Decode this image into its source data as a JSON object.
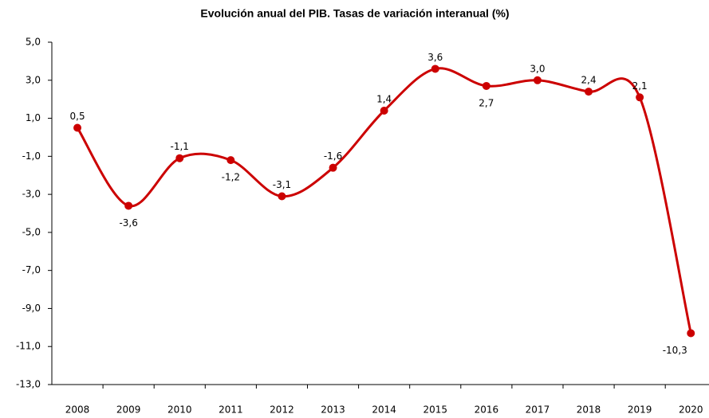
{
  "chart_data": {
    "type": "line",
    "title": "Evolución anual del PIB. Tasas de variación interanual (%)",
    "categories": [
      "2008",
      "2009",
      "2010",
      "2011",
      "2012",
      "2013",
      "2014",
      "2015",
      "2016",
      "2017",
      "2018",
      "2019",
      "2020"
    ],
    "series": [
      {
        "name": "PIB",
        "color": "#cc0000",
        "values": [
          0.5,
          -3.6,
          -1.1,
          -1.2,
          -3.1,
          -1.6,
          1.4,
          3.6,
          2.7,
          3.0,
          2.4,
          2.1,
          -10.3
        ],
        "value_labels": [
          "0,5",
          "-3,6",
          "-1,1",
          "-1,2",
          "-3,1",
          "-1,6",
          "1,4",
          "3,6",
          "2,7",
          "3,0",
          "2,4",
          "2,1",
          "-10,3"
        ]
      }
    ],
    "ylim": [
      -13,
      5
    ],
    "yticks": [
      {
        "value": -13,
        "label": "-13,0"
      },
      {
        "value": -11,
        "label": "-11,0"
      },
      {
        "value": -9,
        "label": "-9,0"
      },
      {
        "value": -7,
        "label": "-7,0"
      },
      {
        "value": -5,
        "label": "-5,0"
      },
      {
        "value": -3,
        "label": "-3,0"
      },
      {
        "value": -1,
        "label": "-1,0"
      },
      {
        "value": 1,
        "label": "1,0"
      },
      {
        "value": 3,
        "label": "3,0"
      },
      {
        "value": 5,
        "label": "5,0"
      }
    ],
    "grid": false
  }
}
